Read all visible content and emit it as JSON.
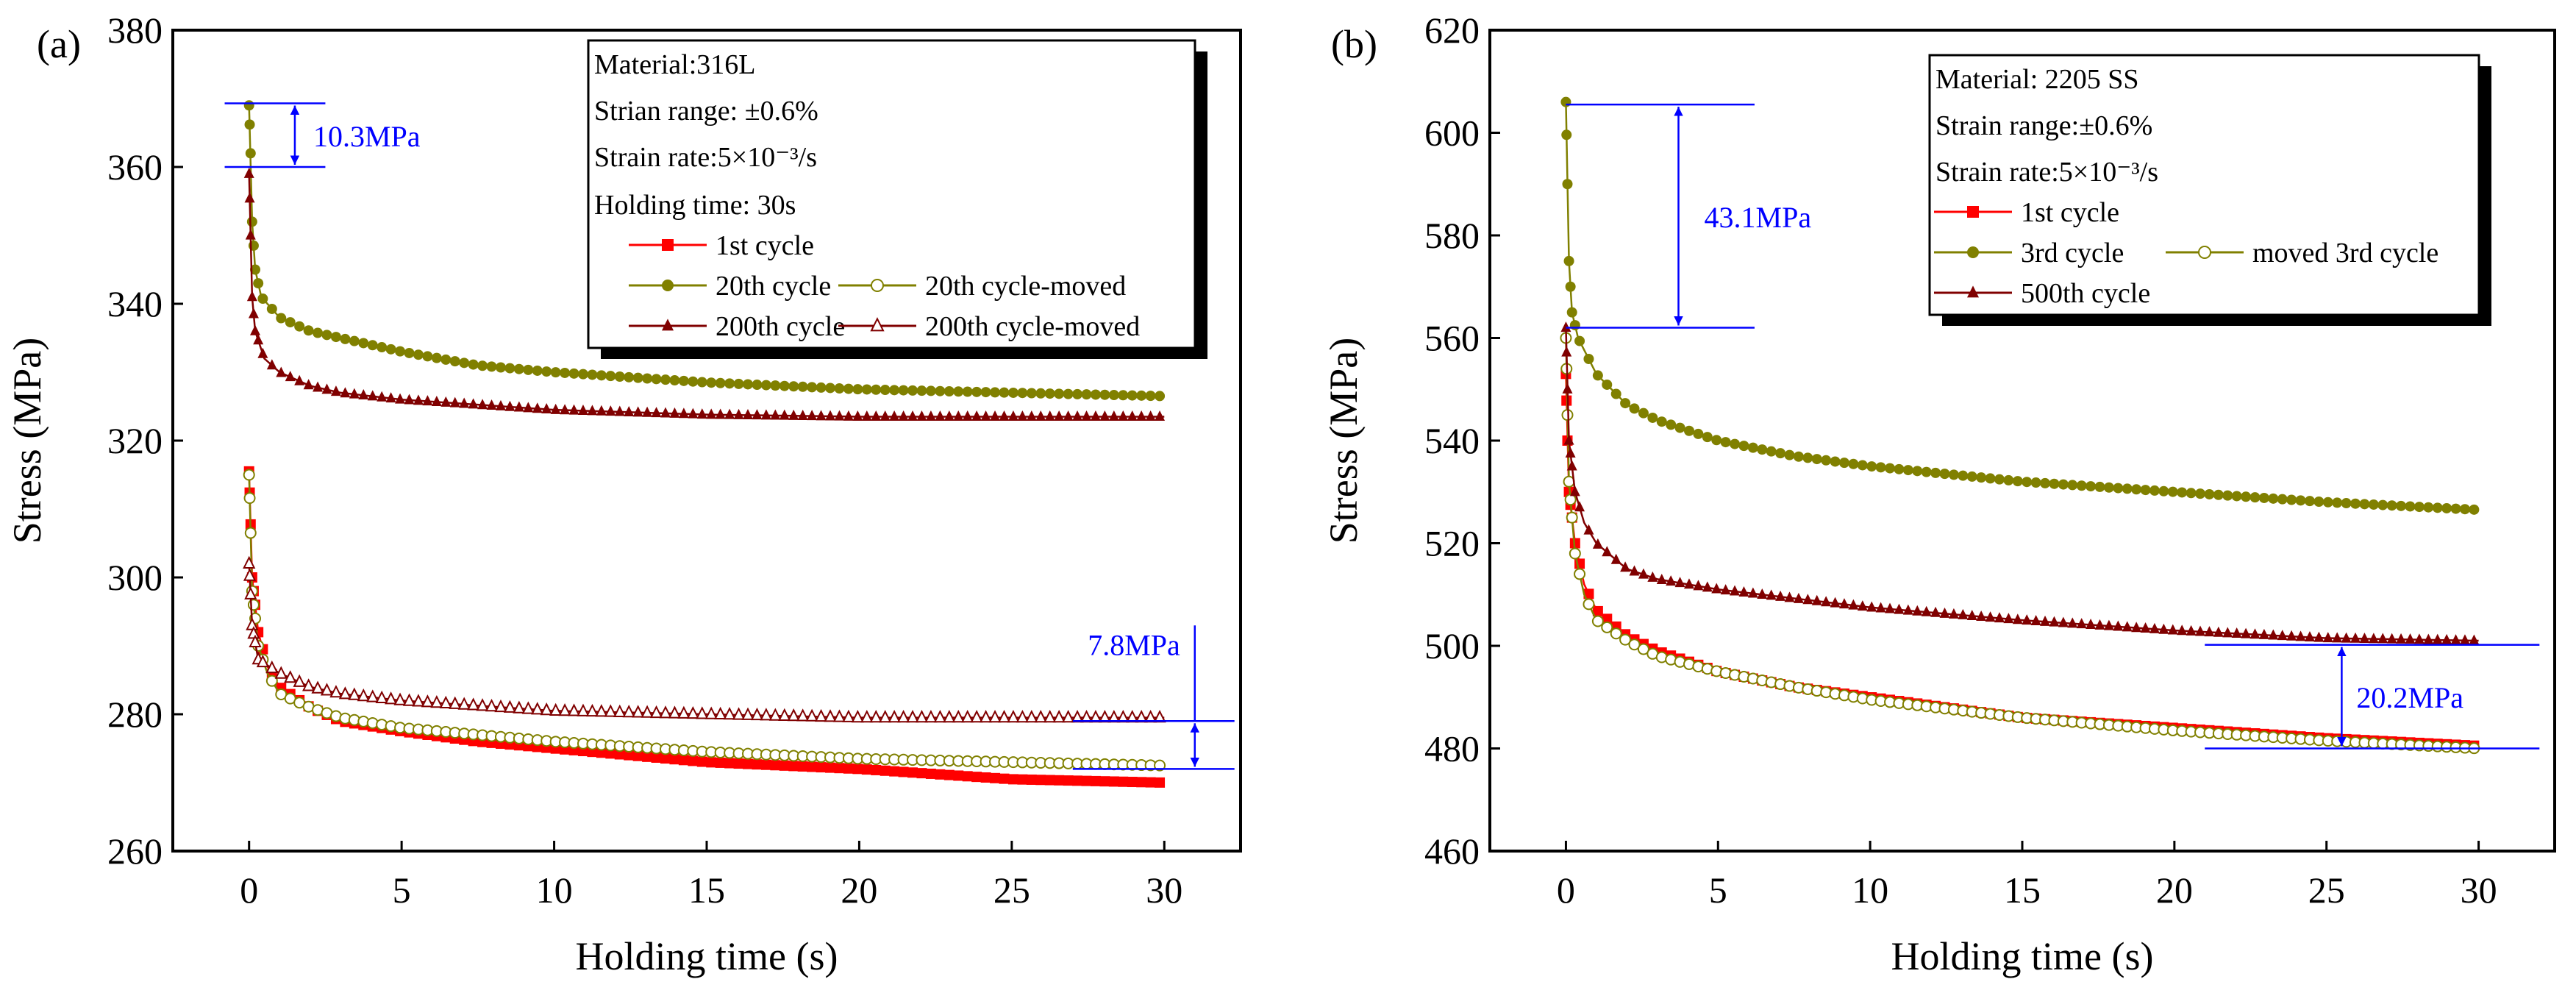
{
  "colors": {
    "first": "#ff0000",
    "olive": "#808000",
    "darkred": "#800000",
    "annotation": "#0000ff"
  },
  "chart_data": [
    {
      "type": "line",
      "panel_label": "(a)",
      "xlabel": "Holding time (s)",
      "ylabel": "Stress (MPa)",
      "xlim": [
        -2.5,
        32.5
      ],
      "ylim": [
        260,
        380
      ],
      "xticks": [
        0,
        5,
        10,
        15,
        20,
        25,
        30
      ],
      "yticks": [
        260,
        280,
        300,
        320,
        340,
        360,
        380
      ],
      "legend_placement": "top-right",
      "legend_text": [
        "Material:316L",
        "Strian range: ±0.6%",
        "Strain rate:5×10⁻³/s",
        "Holding time: 30s"
      ],
      "series": [
        {
          "name": "1st cycle",
          "color": "#ff0000",
          "marker": "square-filled",
          "x": [
            0,
            0.1,
            0.3,
            0.6,
            1,
            2,
            3,
            5,
            7.5,
            10,
            15,
            20,
            25,
            30
          ],
          "y": [
            315.5,
            300,
            292,
            287,
            284,
            281,
            279,
            277.5,
            276,
            275,
            273,
            272,
            270.5,
            270
          ]
        },
        {
          "name": "20th cycle",
          "color": "#808000",
          "marker": "circle-filled",
          "x": [
            0,
            0.05,
            0.1,
            0.2,
            0.4,
            1,
            2,
            3,
            5,
            7.5,
            10,
            15,
            20,
            25,
            30
          ],
          "y": [
            369,
            362,
            352,
            345,
            341,
            338,
            336,
            335,
            333,
            331,
            330,
            328.5,
            327.5,
            327,
            326.5
          ]
        },
        {
          "name": "20th cycle-moved",
          "color": "#808000",
          "marker": "circle-open",
          "x": [
            0,
            0.1,
            0.3,
            0.6,
            1,
            2,
            3,
            5,
            10,
            15,
            20,
            25,
            30
          ],
          "y": [
            315,
            298,
            290,
            286,
            283,
            281,
            279.5,
            278,
            276,
            274.5,
            273.5,
            273,
            272.5
          ]
        },
        {
          "name": "200th cycle",
          "color": "#800000",
          "marker": "triangle-filled",
          "x": [
            0,
            0.05,
            0.1,
            0.2,
            0.5,
            1,
            2,
            3,
            5,
            10,
            15,
            20,
            25,
            30
          ],
          "y": [
            359,
            350,
            341,
            336,
            332,
            330,
            328,
            327,
            326,
            324.5,
            323.8,
            323.5,
            323.5,
            323.5
          ]
        },
        {
          "name": "200th cycle-moved",
          "color": "#800000",
          "marker": "triangle-open",
          "x": [
            0,
            0.1,
            0.3,
            1,
            2,
            3,
            5,
            10,
            15,
            20,
            30
          ],
          "y": [
            302,
            293,
            288,
            286,
            284,
            283,
            282,
            280.5,
            280,
            279.5,
            279.5
          ]
        }
      ],
      "annotations": [
        {
          "label": "10.3MPa",
          "y_top": 369.3,
          "y_bottom": 360,
          "x_from": -0.8,
          "x_to": 2.5,
          "arrow_x": 1.5
        },
        {
          "label": "7.8MPa",
          "y_top": 279,
          "y_bottom": 272,
          "x_from": 27,
          "x_to": 32.3,
          "arrow_x": 31
        }
      ]
    },
    {
      "type": "line",
      "panel_label": "(b)",
      "xlabel": "Holding time (s)",
      "ylabel": "Stress (MPa)",
      "xlim": [
        -2.5,
        32.5
      ],
      "ylim": [
        460,
        620
      ],
      "xticks": [
        0,
        5,
        10,
        15,
        20,
        25,
        30
      ],
      "yticks": [
        460,
        480,
        500,
        520,
        540,
        560,
        580,
        600,
        620
      ],
      "legend_placement": "top-right",
      "legend_text": [
        "Material: 2205 SS",
        "Strain range:±0.6%",
        "Strain rate:5×10⁻³/s"
      ],
      "series": [
        {
          "name": "1st cycle",
          "color": "#ff0000",
          "marker": "square-filled",
          "x": [
            0,
            0.05,
            0.1,
            0.3,
            0.6,
            1,
            2,
            3,
            5,
            7.5,
            10,
            15,
            20,
            25,
            30
          ],
          "y": [
            553,
            540,
            530,
            520,
            512,
            507,
            502,
            499,
            495,
            492,
            490,
            486,
            484,
            482,
            480.5
          ]
        },
        {
          "name": "3rd cycle",
          "color": "#808000",
          "marker": "circle-filled",
          "x": [
            0,
            0.05,
            0.1,
            0.2,
            0.4,
            1,
            2,
            3,
            5,
            7.5,
            10,
            15,
            20,
            25,
            30
          ],
          "y": [
            606,
            590,
            575,
            565,
            560,
            553,
            547,
            544,
            540,
            537,
            535,
            532,
            530,
            528,
            526.5
          ]
        },
        {
          "name": "moved 3rd cycle",
          "color": "#808000",
          "marker": "circle-open",
          "x": [
            0,
            0.05,
            0.1,
            0.3,
            0.6,
            1,
            2,
            3,
            5,
            7.5,
            10,
            15,
            20,
            25,
            30
          ],
          "y": [
            560,
            545,
            532,
            518,
            510,
            505,
            501,
            498,
            495,
            492,
            489.5,
            486,
            483.5,
            481.5,
            480
          ]
        },
        {
          "name": "500th cycle",
          "color": "#800000",
          "marker": "triangle-filled",
          "x": [
            0,
            0.05,
            0.1,
            0.3,
            0.6,
            1,
            2,
            3,
            5,
            10,
            15,
            20,
            25,
            30
          ],
          "y": [
            562,
            550,
            540,
            530,
            524,
            520,
            515,
            513,
            511,
            507.5,
            505,
            503,
            501.5,
            501
          ]
        }
      ],
      "annotations": [
        {
          "label": "43.1MPa",
          "y_top": 605.5,
          "y_bottom": 562,
          "x_from": 0,
          "x_to": 6.2,
          "arrow_x": 3.7
        },
        {
          "label": "20.2MPa",
          "y_top": 500.2,
          "y_bottom": 480,
          "x_from": 21,
          "x_to": 32,
          "arrow_x": 25.5
        }
      ]
    }
  ]
}
